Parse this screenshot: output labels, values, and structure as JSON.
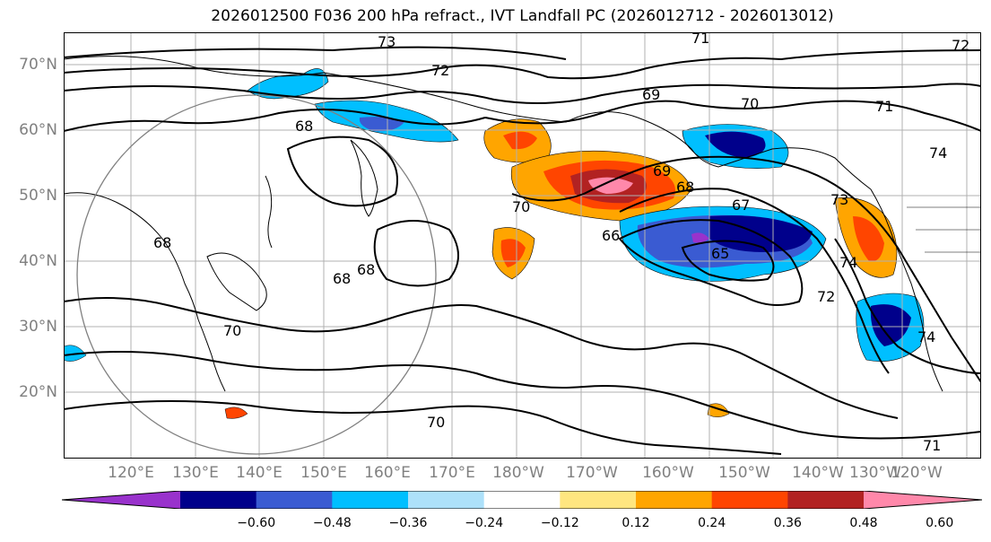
{
  "title": "2026012500 F036 200 hPa refract., IVT Landfall PC (2026012712 - 2026013012)",
  "lat_labels": [
    "70°N",
    "60°N",
    "50°N",
    "40°N",
    "30°N",
    "20°N"
  ],
  "lon_labels": [
    "120°E",
    "130°E",
    "140°E",
    "150°E",
    "160°E",
    "170°E",
    "180°W",
    "170°W",
    "160°W",
    "150°W",
    "140°W",
    "130°W",
    "120°W"
  ],
  "contour_labels": [
    "73",
    "71",
    "72",
    "69",
    "70",
    "71",
    "68",
    "74",
    "68",
    "69",
    "68",
    "67",
    "70",
    "73",
    "66",
    "65",
    "68",
    "68",
    "74",
    "72",
    "70",
    "74",
    "70",
    "71",
    "72"
  ],
  "colorbar": {
    "ticks": [
      "−0.60",
      "−0.48",
      "−0.36",
      "−0.24",
      "−0.12",
      "0.12",
      "0.24",
      "0.36",
      "0.48",
      "0.60"
    ],
    "colors": [
      "#9932CC",
      "#00008B",
      "#3A5BD2",
      "#00BFFF",
      "#ADE1FA",
      "#FFFFFF",
      "#FFE680",
      "#FFA500",
      "#FF4500",
      "#B22222",
      "#FF88AA"
    ]
  }
}
